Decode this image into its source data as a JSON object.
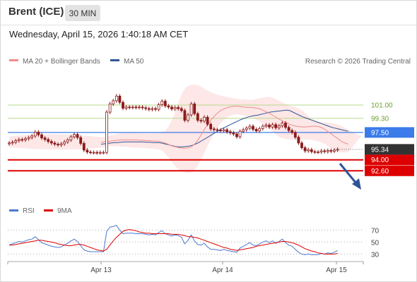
{
  "header": {
    "title": "Brent (ICE)",
    "timeframe": "30 MIN",
    "timestamp": "Wednesday, April 15, 2026 1:40:18 AM CET"
  },
  "legend": {
    "ma20": "MA 20 + Bollinger Bands",
    "ma50": "MA 50",
    "credit": "Research © 2026 Trading Central"
  },
  "colors": {
    "candle": "#8b1a1a",
    "ma20": "#f08c8c",
    "bollinger_fill": "#fde3e3",
    "ma50": "#2f5597",
    "resistance": "#b6d88a",
    "resistance_text": "#6aa12a",
    "pivot": "#3b7bea",
    "support": "#dd0000",
    "arrow": "#2f5597",
    "rsi": "#4a78d0",
    "rsi_ma": "#dd0000",
    "last_price": "#333333"
  },
  "chart_data": [
    {
      "type": "candlestick",
      "title": "",
      "x_ticks": [
        "Apr 13",
        "Apr 14",
        "Apr 15"
      ],
      "close": [
        96.15,
        96.25,
        96.45,
        96.6,
        96.55,
        96.7,
        96.85,
        97.05,
        97.55,
        97.2,
        96.8,
        96.6,
        96.35,
        96.15,
        96.0,
        95.9,
        96.05,
        96.3,
        96.55,
        96.95,
        97.25,
        96.85,
        96.1,
        95.25,
        95.0,
        94.95,
        94.95,
        94.9,
        94.95,
        94.95,
        100.1,
        101.15,
        101.55,
        102.15,
        101.35,
        100.6,
        100.75,
        100.7,
        100.75,
        100.7,
        100.75,
        100.65,
        100.55,
        100.45,
        100.55,
        100.45,
        101.05,
        101.5,
        100.9,
        100.75,
        100.5,
        100.7,
        100.55,
        100.3,
        99.05,
        99.75,
        101.15,
        99.9,
        99.05,
        98.95,
        99.45,
        98.55,
        97.95,
        97.85,
        97.8,
        97.7,
        97.85,
        97.6,
        97.45,
        97.3,
        96.95,
        97.65,
        97.85,
        98.05,
        98.3,
        97.9,
        97.7,
        98.0,
        98.3,
        98.45,
        98.2,
        98.5,
        98.1,
        98.35,
        98.7,
        98.15,
        97.75,
        97.5,
        96.9,
        96.15,
        95.55,
        95.15,
        95.3,
        95.05,
        95.0,
        95.0,
        95.15,
        95.05,
        95.2,
        95.1,
        95.25,
        95.34
      ],
      "overlays": {
        "ma20": [
          96.25,
          96.3,
          96.35,
          96.4,
          96.45,
          96.5,
          96.55,
          96.55,
          96.55,
          96.55,
          96.55,
          96.55,
          96.5,
          96.5,
          96.45,
          96.45,
          96.4,
          96.4,
          96.35,
          96.25,
          96.1,
          95.9,
          95.75,
          95.65,
          95.55,
          95.5,
          95.5,
          95.55,
          95.75,
          96.1,
          96.65,
          97.35,
          98.05,
          98.65,
          99.2,
          99.65,
          100.05,
          100.35,
          100.55,
          100.7,
          100.8,
          100.85,
          100.85,
          100.8,
          100.75,
          100.7,
          100.7,
          100.65,
          100.6,
          100.5,
          100.3,
          100.1,
          99.9,
          99.65,
          99.4,
          99.15,
          98.95,
          98.75,
          98.55,
          98.4,
          98.3,
          98.25,
          98.2,
          98.2,
          98.25,
          98.3,
          98.3,
          98.25,
          98.1,
          97.85,
          97.55,
          97.25,
          96.95,
          96.65,
          96.35,
          96.15,
          96.0
        ],
        "ma50": [
          96.0,
          96.05,
          96.1,
          96.15,
          96.2,
          96.2,
          96.25,
          96.3,
          96.3,
          96.3,
          96.3,
          96.3,
          96.3,
          96.3,
          96.25,
          96.25,
          96.2,
          96.2,
          96.2,
          96.1,
          96.0,
          95.9,
          95.8,
          95.7,
          95.65,
          95.65,
          95.7,
          95.75,
          95.85,
          96.0,
          96.2,
          96.45,
          96.7,
          96.95,
          97.2,
          97.45,
          97.7,
          97.95,
          98.15,
          98.35,
          98.55,
          98.75,
          98.95,
          99.15,
          99.3,
          99.45,
          99.55,
          99.65,
          99.7,
          99.8,
          99.9,
          100.0,
          100.1,
          100.15,
          100.2,
          100.25,
          100.3,
          100.35,
          100.3,
          100.1,
          99.9,
          99.7,
          99.5,
          99.35,
          99.2,
          99.05,
          98.9,
          98.75,
          98.6,
          98.45,
          98.3,
          98.15,
          98.05,
          97.95,
          97.85,
          97.75,
          97.65
        ],
        "bollinger_upper": [
          96.9,
          96.95,
          97.0,
          97.1,
          97.2,
          97.3,
          97.4,
          97.45,
          97.5,
          97.5,
          97.5,
          97.45,
          97.4,
          97.4,
          97.35,
          97.4,
          97.4,
          97.45,
          97.5,
          97.6,
          97.8,
          98.4,
          99.3,
          100.4,
          101.6,
          102.6,
          103.2,
          103.5,
          103.6,
          103.6,
          103.5,
          103.3,
          103.0,
          102.8,
          102.6,
          102.45,
          102.3,
          102.2,
          102.1,
          102.0,
          101.95,
          101.85,
          101.8,
          101.7,
          101.75,
          101.7,
          101.65,
          101.7,
          101.8,
          101.9,
          101.95,
          102.05,
          102.0,
          101.9,
          101.7,
          101.5,
          101.3,
          101.1,
          100.9,
          100.8,
          100.7,
          100.5,
          100.25,
          99.9,
          99.5,
          99.2,
          99.0,
          98.85,
          98.8,
          98.8,
          98.75,
          98.7,
          98.6,
          98.5,
          98.3,
          98.1,
          97.9,
          97.65,
          97.4,
          97.2,
          97.05
        ],
        "bollinger_lower": [
          95.55,
          95.6,
          95.7,
          95.75,
          95.75,
          95.75,
          95.7,
          95.7,
          95.65,
          95.6,
          95.55,
          95.55,
          95.55,
          95.5,
          95.5,
          95.45,
          95.4,
          95.4,
          95.3,
          95.1,
          94.7,
          94.2,
          93.6,
          93.1,
          92.75,
          92.5,
          92.35,
          92.3,
          92.45,
          92.8,
          93.4,
          94.2,
          95.1,
          96.0,
          96.8,
          97.55,
          98.2,
          98.75,
          99.2,
          99.5,
          99.7,
          99.8,
          99.8,
          99.75,
          99.65,
          99.55,
          99.45,
          99.3,
          99.1,
          98.8,
          98.5,
          98.2,
          97.9,
          97.5,
          97.15,
          96.9,
          96.75,
          96.65,
          96.6,
          96.55,
          96.5,
          96.5,
          96.55,
          96.6,
          96.6,
          96.55,
          96.45,
          96.35,
          96.2,
          96.0,
          95.7,
          95.4,
          95.2,
          95.05,
          94.95,
          94.95,
          94.95
        ]
      },
      "levels": [
        {
          "name": "resistance-2",
          "value": 101.0,
          "label": "101.00"
        },
        {
          "name": "resistance-1",
          "value": 99.3,
          "label": "99.30"
        },
        {
          "name": "pivot",
          "value": 97.5,
          "label": "97.50"
        },
        {
          "name": "support-1",
          "value": 94.0,
          "label": "94.00"
        },
        {
          "name": "support-2",
          "value": 92.6,
          "label": "92.60"
        }
      ],
      "last_price": {
        "value": 95.34,
        "label": "95.34"
      },
      "projection": "down",
      "ylim": [
        88.75,
        105.6
      ],
      "grid": false
    },
    {
      "type": "line",
      "title": "",
      "series": [
        {
          "name": "RSI",
          "values": [
            45,
            47,
            49,
            51,
            50,
            52,
            54,
            55,
            59,
            54,
            49,
            47,
            45,
            43,
            42,
            41,
            42,
            45,
            48,
            52,
            55,
            51,
            44,
            37,
            35,
            34,
            34,
            34,
            34,
            34,
            68,
            75,
            76,
            78,
            70,
            64,
            65,
            65,
            65,
            64,
            64,
            64,
            63,
            62,
            63,
            62,
            66,
            69,
            64,
            62,
            60,
            62,
            61,
            58,
            47,
            53,
            62,
            52,
            46,
            45,
            48,
            42,
            38,
            38,
            37,
            36,
            38,
            36,
            35,
            34,
            33,
            40,
            43,
            46,
            49,
            45,
            44,
            47,
            50,
            52,
            49,
            52,
            48,
            51,
            55,
            49,
            45,
            43,
            38,
            33,
            30,
            29,
            30,
            29,
            29,
            29,
            31,
            30,
            32,
            31,
            33,
            36
          ]
        },
        {
          "name": "9MA",
          "values": [
            45,
            45,
            46,
            47,
            48,
            49,
            50,
            51,
            52,
            53,
            53,
            52,
            51,
            50,
            49,
            47,
            46,
            45,
            44,
            44,
            45,
            46,
            46,
            45,
            43,
            41,
            39,
            37,
            36,
            35,
            38,
            45,
            52,
            58,
            63,
            68,
            70,
            71,
            70,
            69,
            67,
            66,
            65,
            65,
            64,
            64,
            64,
            64,
            64,
            64,
            63,
            63,
            63,
            62,
            61,
            59,
            59,
            58,
            57,
            55,
            53,
            51,
            49,
            47,
            45,
            43,
            41,
            40,
            38,
            37,
            36,
            37,
            38,
            39,
            40,
            41,
            43,
            44,
            45,
            46,
            47,
            48,
            49,
            50,
            51,
            51,
            50,
            49,
            47,
            45,
            42,
            39,
            37,
            35,
            34,
            32,
            31,
            30,
            30,
            30,
            30,
            31
          ]
        }
      ],
      "y_ticks": [
        30,
        50,
        70
      ],
      "ylim": [
        21,
        87
      ]
    }
  ]
}
